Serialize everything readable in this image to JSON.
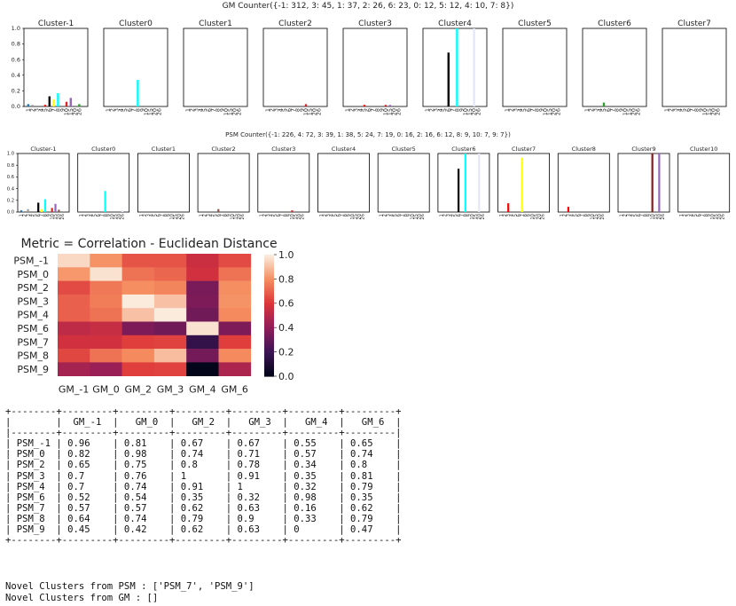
{
  "gm_counter_title": "GM Counter({-1: 312, 3: 45, 1: 37, 2: 26, 6: 23, 0: 12, 5: 12, 4: 10, 7: 8})",
  "psm_counter_title": "PSM Counter({-1: 226, 4: 72, 3: 39, 1: 38, 5: 24, 7: 19, 0: 16, 2: 16, 6: 12, 8: 9, 10: 7, 9: 7})",
  "tick_labels": [
    "1",
    "2",
    "3",
    "4",
    "5",
    "6",
    "7",
    "8",
    "9",
    "10",
    "15",
    "20",
    "26"
  ],
  "colors": [
    "#ff7f7f",
    "#1f77b4",
    "#999999",
    "#2ca02c",
    "#ff0000",
    "#000000",
    "#ffff00",
    "#00ffff",
    "#ff7f0e",
    "#d62728",
    "#9467bd",
    "#8c564b",
    "#e6e6fa"
  ],
  "chart_data": [
    {
      "type": "bar",
      "title": "GM Counter({-1: 312, 3: 45, 1: 37, 2: 26, 6: 23, 0: 12, 5: 12, 4: 10, 7: 8})",
      "ylim": [
        0,
        1
      ],
      "yticks": [
        "0.0",
        "0.2",
        "0.4",
        "0.6",
        "0.8",
        "1.0"
      ],
      "panels": [
        {
          "name": "Cluster-1",
          "bars": [
            {
              "x": 1,
              "v": 0.03,
              "c": "#1f77b4"
            },
            {
              "x": 2,
              "v": 0.02,
              "c": "#999999"
            },
            {
              "x": 5,
              "v": 0.02,
              "c": "#ff0000"
            },
            {
              "x": 6,
              "v": 0.13,
              "c": "#000000"
            },
            {
              "x": 7,
              "v": 0.09,
              "c": "#ffff00"
            },
            {
              "x": 8,
              "v": 0.17,
              "c": "#00ffff"
            },
            {
              "x": 10,
              "v": 0.06,
              "c": "#d62728"
            },
            {
              "x": 11,
              "v": 0.11,
              "c": "#9467bd"
            },
            {
              "x": 13,
              "v": 0.03,
              "c": "#2ca02c"
            }
          ]
        },
        {
          "name": "Cluster0",
          "bars": [
            {
              "x": 8,
              "v": 0.34,
              "c": "#00ffff"
            }
          ]
        },
        {
          "name": "Cluster1",
          "bars": []
        },
        {
          "name": "Cluster2",
          "bars": [
            {
              "x": 10,
              "v": 0.03,
              "c": "#d62728"
            }
          ]
        },
        {
          "name": "Cluster3",
          "bars": [
            {
              "x": 5,
              "v": 0.02,
              "c": "#ff0000"
            },
            {
              "x": 10,
              "v": 0.02,
              "c": "#d62728"
            },
            {
              "x": 11,
              "v": 0.02,
              "c": "#9467bd"
            }
          ]
        },
        {
          "name": "Cluster4",
          "bars": [
            {
              "x": 6,
              "v": 0.69,
              "c": "#000000"
            },
            {
              "x": 8,
              "v": 1.0,
              "c": "#00ffff"
            },
            {
              "x": 12,
              "v": 1.0,
              "c": "#e6e6fa"
            }
          ]
        },
        {
          "name": "Cluster5",
          "bars": []
        },
        {
          "name": "Cluster6",
          "bars": [
            {
              "x": 5,
              "v": 0.05,
              "c": "#2ca02c"
            }
          ]
        },
        {
          "name": "Cluster7",
          "bars": []
        }
      ]
    },
    {
      "type": "bar",
      "title": "PSM Counter({-1: 226, 4: 72, 3: 39, 1: 38, 5: 24, 7: 19, 0: 16, 2: 16, 6: 12, 8: 9, 10: 7, 9: 7})",
      "ylim": [
        0,
        1
      ],
      "yticks": [
        "0.0",
        "0.2",
        "0.4",
        "0.6",
        "0.8",
        "1.0"
      ],
      "panels": [
        {
          "name": "Cluster-1",
          "bars": [
            {
              "x": 1,
              "v": 0.03,
              "c": "#1f77b4"
            },
            {
              "x": 3,
              "v": 0.05,
              "c": "#999999"
            },
            {
              "x": 6,
              "v": 0.16,
              "c": "#000000"
            },
            {
              "x": 7,
              "v": 0.05,
              "c": "#ffff00"
            },
            {
              "x": 8,
              "v": 0.22,
              "c": "#00ffff"
            },
            {
              "x": 10,
              "v": 0.07,
              "c": "#d62728"
            },
            {
              "x": 11,
              "v": 0.14,
              "c": "#9467bd"
            },
            {
              "x": 12,
              "v": 0.04,
              "c": "#8c564b"
            }
          ]
        },
        {
          "name": "Cluster0",
          "bars": [
            {
              "x": 8,
              "v": 0.36,
              "c": "#00ffff"
            },
            {
              "x": 13,
              "v": 0.03,
              "c": "#e6e6fa"
            }
          ]
        },
        {
          "name": "Cluster1",
          "bars": []
        },
        {
          "name": "Cluster2",
          "bars": [
            {
              "x": 6,
              "v": 0.05,
              "c": "#8c564b"
            }
          ]
        },
        {
          "name": "Cluster3",
          "bars": [
            {
              "x": 10,
              "v": 0.03,
              "c": "#d62728"
            }
          ]
        },
        {
          "name": "Cluster4",
          "bars": []
        },
        {
          "name": "Cluster5",
          "bars": []
        },
        {
          "name": "Cluster6",
          "bars": [
            {
              "x": 6,
              "v": 0.74,
              "c": "#000000"
            },
            {
              "x": 8,
              "v": 1.0,
              "c": "#00ffff"
            },
            {
              "x": 12,
              "v": 1.0,
              "c": "#e6e6fa"
            }
          ]
        },
        {
          "name": "Cluster7",
          "bars": [
            {
              "x": 3,
              "v": 0.15,
              "c": "#ff0000"
            },
            {
              "x": 7,
              "v": 0.93,
              "c": "#ffff00"
            }
          ]
        },
        {
          "name": "Cluster8",
          "bars": [
            {
              "x": 3,
              "v": 0.09,
              "c": "#ff0000"
            }
          ]
        },
        {
          "name": "Cluster9",
          "bars": [
            {
              "x": 10,
              "v": 1.0,
              "c": "#8b1a1a"
            },
            {
              "x": 12,
              "v": 1.0,
              "c": "#9467bd"
            }
          ]
        },
        {
          "name": "Cluster10",
          "bars": []
        }
      ]
    },
    {
      "type": "heatmap",
      "title": "Metric = Correlation - Euclidean Distance",
      "rows": [
        "PSM_-1",
        "PSM_0",
        "PSM_2",
        "PSM_3",
        "PSM_4",
        "PSM_6",
        "PSM_7",
        "PSM_8",
        "PSM_9"
      ],
      "cols": [
        "GM_-1",
        "GM_0",
        "GM_2",
        "GM_3",
        "GM_4",
        "GM_6"
      ],
      "values": [
        [
          0.96,
          0.81,
          0.67,
          0.67,
          0.55,
          0.65
        ],
        [
          0.82,
          0.98,
          0.74,
          0.71,
          0.57,
          0.74
        ],
        [
          0.65,
          0.75,
          0.8,
          0.78,
          0.34,
          0.8
        ],
        [
          0.7,
          0.76,
          1,
          0.91,
          0.35,
          0.81
        ],
        [
          0.7,
          0.74,
          0.91,
          1,
          0.32,
          0.79
        ],
        [
          0.52,
          0.54,
          0.35,
          0.32,
          0.98,
          0.35
        ],
        [
          0.57,
          0.57,
          0.62,
          0.63,
          0.16,
          0.62
        ],
        [
          0.64,
          0.74,
          0.79,
          0.9,
          0.33,
          0.79
        ],
        [
          0.45,
          0.42,
          0.62,
          0.63,
          0,
          0.47
        ]
      ],
      "colorbar_ticks": [
        "1.0",
        "0.8",
        "0.6",
        "0.4",
        "0.2",
        "0.0"
      ],
      "vmin": 0,
      "vmax": 1
    }
  ],
  "table": {
    "header": [
      "",
      "GM_-1",
      "GM_0",
      "GM_2",
      "GM_3",
      "GM_4",
      "GM_6"
    ],
    "rows": [
      [
        "PSM_-1",
        "0.96",
        "0.81",
        "0.67",
        "0.67",
        "0.55",
        "0.65"
      ],
      [
        "PSM_0",
        "0.82",
        "0.98",
        "0.74",
        "0.71",
        "0.57",
        "0.74"
      ],
      [
        "PSM_2",
        "0.65",
        "0.75",
        "0.8",
        "0.78",
        "0.34",
        "0.8"
      ],
      [
        "PSM_3",
        "0.7",
        "0.76",
        "1",
        "0.91",
        "0.35",
        "0.81"
      ],
      [
        "PSM_4",
        "0.7",
        "0.74",
        "0.91",
        "1",
        "0.32",
        "0.79"
      ],
      [
        "PSM_6",
        "0.52",
        "0.54",
        "0.35",
        "0.32",
        "0.98",
        "0.35"
      ],
      [
        "PSM_7",
        "0.57",
        "0.57",
        "0.62",
        "0.63",
        "0.16",
        "0.62"
      ],
      [
        "PSM_8",
        "0.64",
        "0.74",
        "0.79",
        "0.9",
        "0.33",
        "0.79"
      ],
      [
        "PSM_9",
        "0.45",
        "0.42",
        "0.62",
        "0.63",
        "0",
        "0.47"
      ]
    ]
  },
  "novel_psm": "Novel Clusters from PSM : ['PSM_7', 'PSM_9']",
  "novel_gm": "Novel Clusters from GM : []"
}
